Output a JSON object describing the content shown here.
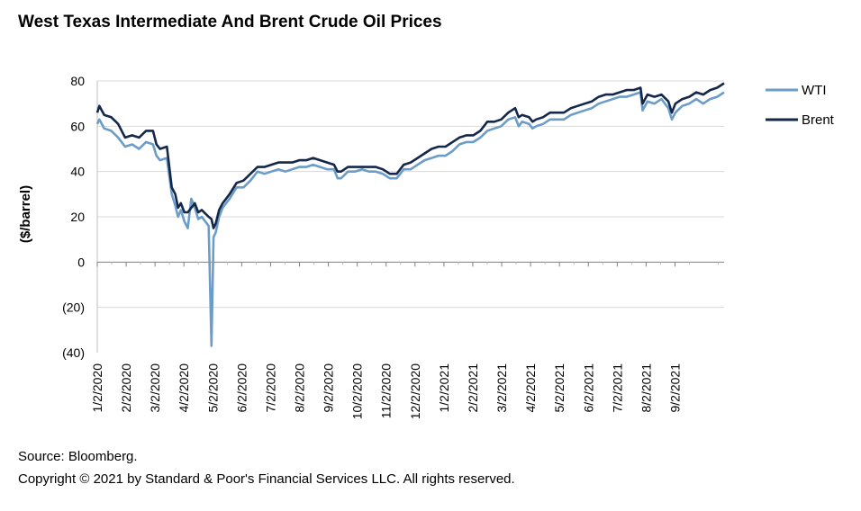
{
  "chart_data": {
    "type": "line",
    "title": "West Texas Intermediate And Brent Crude Oil Prices",
    "xlabel": "",
    "ylabel": "($/barrel)",
    "ylim": [
      -40,
      80
    ],
    "yticks": [
      80,
      60,
      40,
      20,
      0,
      -20,
      -40
    ],
    "ytick_labels": [
      "80",
      "60",
      "40",
      "20",
      "0",
      "(20)",
      "(40)"
    ],
    "categories": [
      "1/2/2020",
      "2/2/2020",
      "3/2/2020",
      "4/2/2020",
      "5/2/2020",
      "6/2/2020",
      "7/2/2020",
      "8/2/2020",
      "9/2/2020",
      "10/2/2020",
      "11/2/2020",
      "12/2/2020",
      "1/2/2021",
      "2/2/2021",
      "3/2/2021",
      "4/2/2021",
      "5/2/2021",
      "6/2/2021",
      "7/2/2021",
      "8/2/2021",
      "9/2/2021"
    ],
    "legend_position": "right",
    "series": [
      {
        "name": "WTI",
        "color": "#6b9dc8",
        "points": [
          [
            0,
            61
          ],
          [
            0.3,
            63
          ],
          [
            1,
            59
          ],
          [
            2,
            58
          ],
          [
            3,
            55
          ],
          [
            4,
            51
          ],
          [
            5,
            52
          ],
          [
            6,
            50
          ],
          [
            7,
            53
          ],
          [
            8,
            52
          ],
          [
            8.5,
            47
          ],
          [
            9,
            45
          ],
          [
            10,
            46
          ],
          [
            10.7,
            30
          ],
          [
            11.2,
            25
          ],
          [
            11.6,
            20
          ],
          [
            12,
            23
          ],
          [
            12.5,
            18
          ],
          [
            13,
            15
          ],
          [
            13.5,
            28
          ],
          [
            14,
            24
          ],
          [
            14.5,
            19
          ],
          [
            15,
            20
          ],
          [
            16,
            16
          ],
          [
            16.4,
            -37
          ],
          [
            16.7,
            11
          ],
          [
            17,
            13
          ],
          [
            17.5,
            20
          ],
          [
            18,
            24
          ],
          [
            19,
            28
          ],
          [
            20,
            33
          ],
          [
            21,
            33
          ],
          [
            22,
            36
          ],
          [
            23,
            40
          ],
          [
            24,
            39
          ],
          [
            25,
            40
          ],
          [
            26,
            41
          ],
          [
            27,
            40
          ],
          [
            28,
            41
          ],
          [
            29,
            42
          ],
          [
            30,
            42
          ],
          [
            31,
            43
          ],
          [
            32,
            42
          ],
          [
            33,
            41
          ],
          [
            34,
            41
          ],
          [
            34.5,
            37
          ],
          [
            35,
            37
          ],
          [
            36,
            40
          ],
          [
            37,
            40
          ],
          [
            38,
            41
          ],
          [
            39,
            40
          ],
          [
            40,
            40
          ],
          [
            41,
            39
          ],
          [
            42,
            37
          ],
          [
            43,
            37
          ],
          [
            44,
            41
          ],
          [
            45,
            41
          ],
          [
            46,
            43
          ],
          [
            47,
            45
          ],
          [
            48,
            46
          ],
          [
            49,
            47
          ],
          [
            50,
            47
          ],
          [
            51,
            49
          ],
          [
            52,
            52
          ],
          [
            53,
            53
          ],
          [
            54,
            53
          ],
          [
            55,
            55
          ],
          [
            56,
            58
          ],
          [
            57,
            59
          ],
          [
            58,
            60
          ],
          [
            59,
            63
          ],
          [
            60,
            64
          ],
          [
            60.5,
            60
          ],
          [
            61,
            62
          ],
          [
            62,
            61
          ],
          [
            62.5,
            59
          ],
          [
            63,
            60
          ],
          [
            64,
            61
          ],
          [
            65,
            63
          ],
          [
            66,
            63
          ],
          [
            67,
            63
          ],
          [
            68,
            65
          ],
          [
            69,
            66
          ],
          [
            70,
            67
          ],
          [
            71,
            68
          ],
          [
            72,
            70
          ],
          [
            73,
            71
          ],
          [
            74,
            72
          ],
          [
            75,
            73
          ],
          [
            76,
            73
          ],
          [
            77,
            74
          ],
          [
            78,
            75
          ],
          [
            78.3,
            67
          ],
          [
            79,
            71
          ],
          [
            80,
            70
          ],
          [
            81,
            72
          ],
          [
            82,
            68
          ],
          [
            82.5,
            63
          ],
          [
            83,
            66
          ],
          [
            84,
            69
          ],
          [
            85,
            70
          ],
          [
            86,
            72
          ],
          [
            87,
            70
          ],
          [
            88,
            72
          ],
          [
            89,
            73
          ],
          [
            90,
            75
          ]
        ]
      },
      {
        "name": "Brent",
        "color": "#14284b",
        "points": [
          [
            0,
            66
          ],
          [
            0.3,
            69
          ],
          [
            1,
            65
          ],
          [
            2,
            64
          ],
          [
            3,
            61
          ],
          [
            4,
            55
          ],
          [
            5,
            56
          ],
          [
            6,
            55
          ],
          [
            7,
            58
          ],
          [
            8,
            58
          ],
          [
            8.5,
            52
          ],
          [
            9,
            50
          ],
          [
            10,
            51
          ],
          [
            10.7,
            33
          ],
          [
            11.2,
            30
          ],
          [
            11.6,
            24
          ],
          [
            12,
            26
          ],
          [
            12.5,
            22
          ],
          [
            13,
            22
          ],
          [
            13.5,
            24
          ],
          [
            14,
            26
          ],
          [
            14.5,
            22
          ],
          [
            15,
            23
          ],
          [
            16,
            20
          ],
          [
            16.4,
            19
          ],
          [
            16.7,
            15
          ],
          [
            17,
            17
          ],
          [
            17.5,
            23
          ],
          [
            18,
            26
          ],
          [
            19,
            30
          ],
          [
            20,
            35
          ],
          [
            21,
            36
          ],
          [
            22,
            39
          ],
          [
            23,
            42
          ],
          [
            24,
            42
          ],
          [
            25,
            43
          ],
          [
            26,
            44
          ],
          [
            27,
            44
          ],
          [
            28,
            44
          ],
          [
            29,
            45
          ],
          [
            30,
            45
          ],
          [
            31,
            46
          ],
          [
            32,
            45
          ],
          [
            33,
            44
          ],
          [
            34,
            43
          ],
          [
            34.5,
            40
          ],
          [
            35,
            40
          ],
          [
            36,
            42
          ],
          [
            37,
            42
          ],
          [
            38,
            42
          ],
          [
            39,
            42
          ],
          [
            40,
            42
          ],
          [
            41,
            41
          ],
          [
            42,
            39
          ],
          [
            43,
            39
          ],
          [
            44,
            43
          ],
          [
            45,
            44
          ],
          [
            46,
            46
          ],
          [
            47,
            48
          ],
          [
            48,
            50
          ],
          [
            49,
            51
          ],
          [
            50,
            51
          ],
          [
            51,
            53
          ],
          [
            52,
            55
          ],
          [
            53,
            56
          ],
          [
            54,
            56
          ],
          [
            55,
            58
          ],
          [
            56,
            62
          ],
          [
            57,
            62
          ],
          [
            58,
            63
          ],
          [
            59,
            66
          ],
          [
            60,
            68
          ],
          [
            60.5,
            64
          ],
          [
            61,
            65
          ],
          [
            62,
            64
          ],
          [
            62.5,
            62
          ],
          [
            63,
            63
          ],
          [
            64,
            64
          ],
          [
            65,
            66
          ],
          [
            66,
            66
          ],
          [
            67,
            66
          ],
          [
            68,
            68
          ],
          [
            69,
            69
          ],
          [
            70,
            70
          ],
          [
            71,
            71
          ],
          [
            72,
            73
          ],
          [
            73,
            74
          ],
          [
            74,
            74
          ],
          [
            75,
            75
          ],
          [
            76,
            76
          ],
          [
            77,
            76
          ],
          [
            78,
            77
          ],
          [
            78.3,
            70
          ],
          [
            79,
            74
          ],
          [
            80,
            73
          ],
          [
            81,
            74
          ],
          [
            82,
            71
          ],
          [
            82.5,
            66
          ],
          [
            83,
            70
          ],
          [
            84,
            72
          ],
          [
            85,
            73
          ],
          [
            86,
            75
          ],
          [
            87,
            74
          ],
          [
            88,
            76
          ],
          [
            89,
            77
          ],
          [
            90,
            79
          ]
        ]
      }
    ]
  },
  "footer": {
    "source": "Source: Bloomberg.",
    "copyright": "Copyright © 2021 by Standard & Poor's Financial Services LLC. All rights reserved."
  }
}
